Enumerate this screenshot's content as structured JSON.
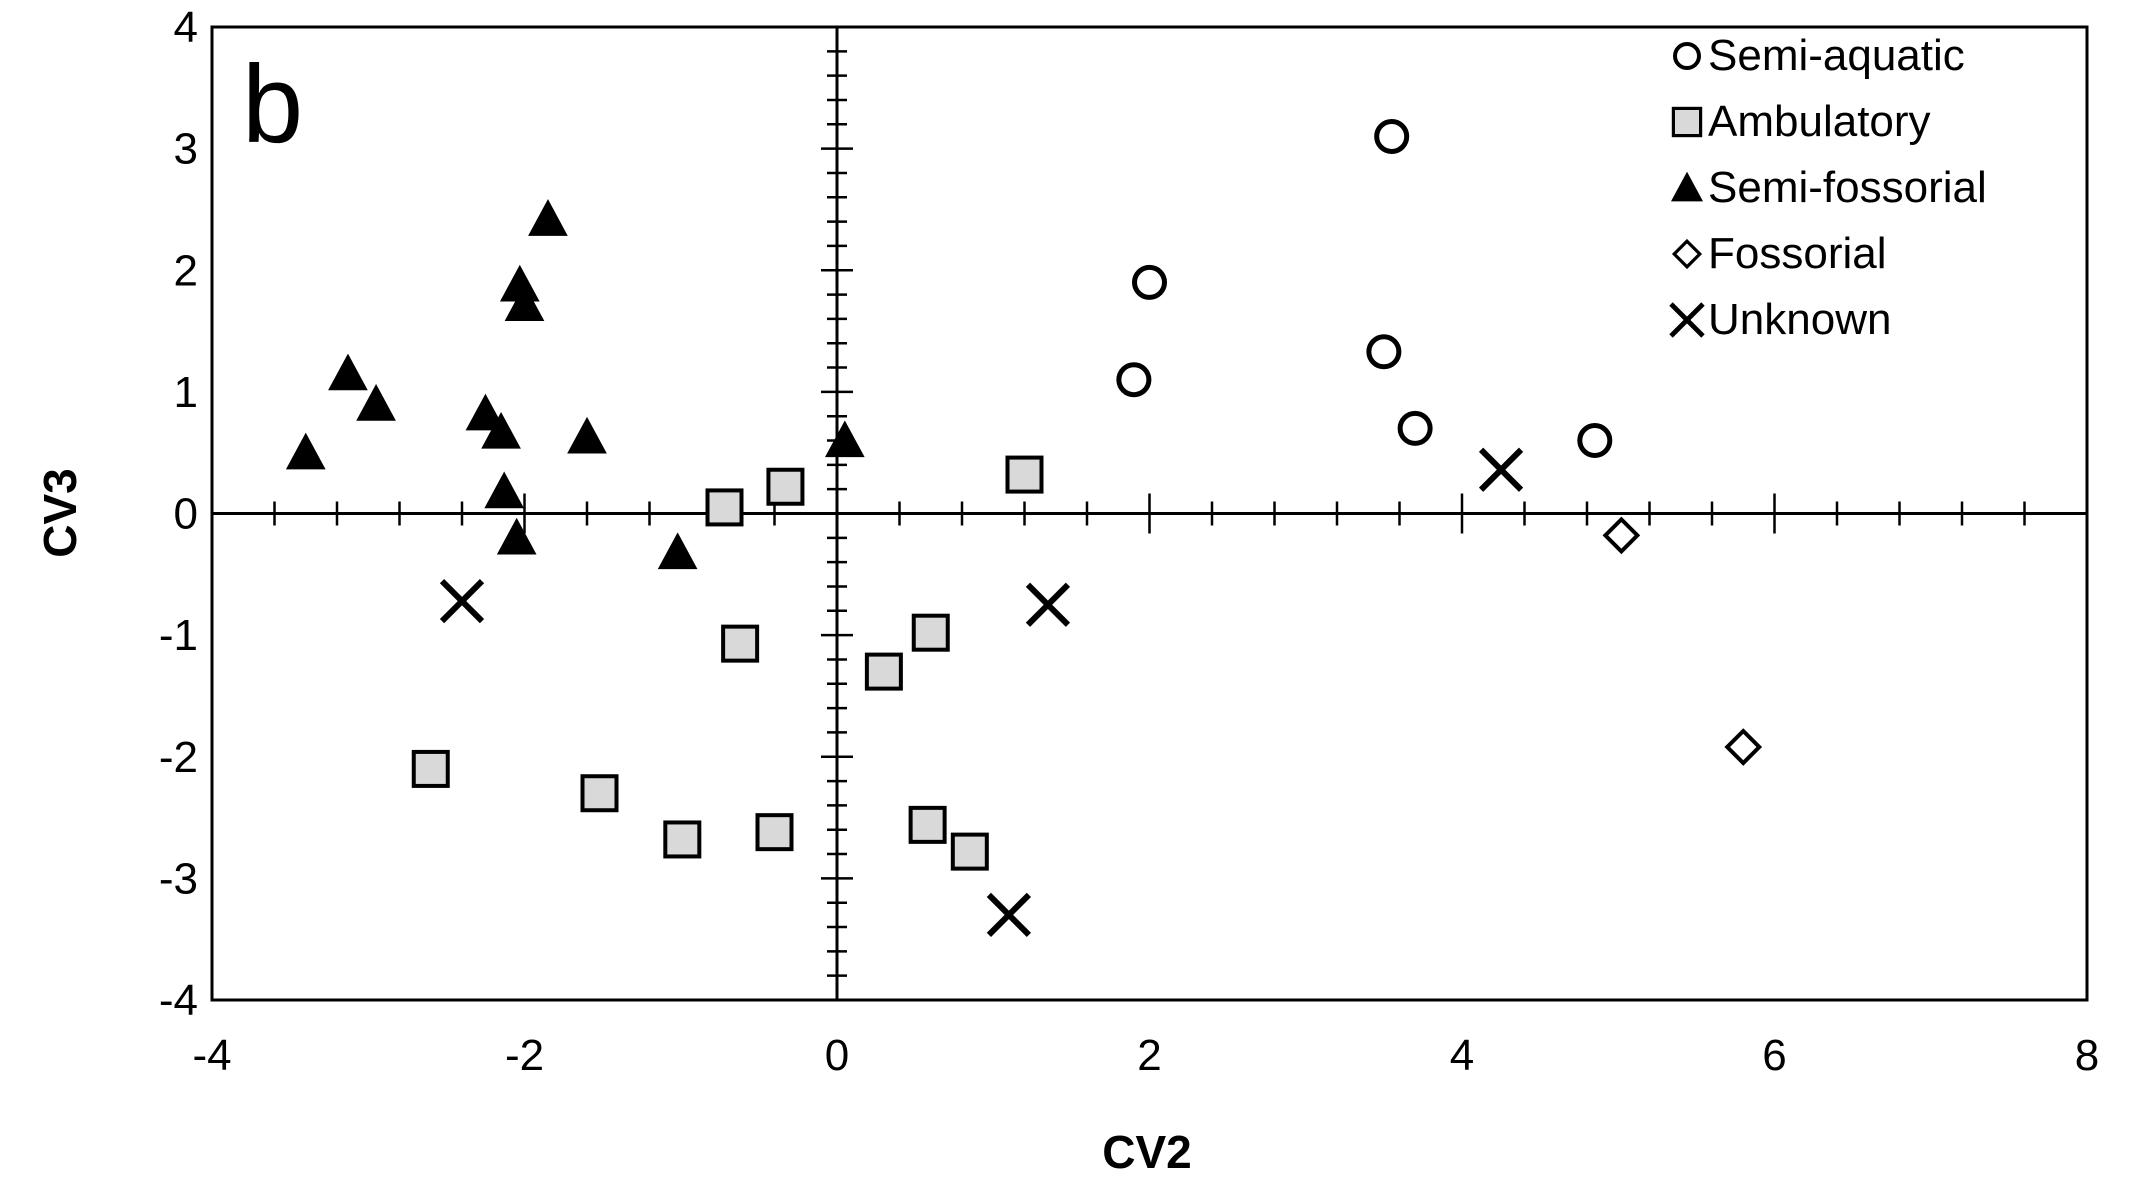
{
  "chart_data": {
    "type": "scatter",
    "panel_label": "b",
    "xlabel": "CV2",
    "ylabel": "CV3",
    "xlim": [
      -4,
      8
    ],
    "ylim": [
      -4,
      4
    ],
    "x_ticks": [
      -4,
      -2,
      0,
      2,
      4,
      6,
      8
    ],
    "y_ticks": [
      -4,
      -3,
      -2,
      -1,
      0,
      1,
      2,
      3,
      4
    ],
    "x_tick_labels": [
      "-4",
      "-2",
      "0",
      "2",
      "4",
      "6",
      "8"
    ],
    "y_tick_labels": [
      "-4",
      "-3",
      "-2",
      "-1",
      "0",
      "1",
      "2",
      "3",
      "4"
    ],
    "grid": false,
    "legend_position": "top-right",
    "series": [
      {
        "name": "Semi-aquatic",
        "marker": "circle",
        "points": [
          [
            3.55,
            3.1
          ],
          [
            2.0,
            1.9
          ],
          [
            1.9,
            1.1
          ],
          [
            3.5,
            1.33
          ],
          [
            3.7,
            0.7
          ],
          [
            4.85,
            0.6
          ]
        ]
      },
      {
        "name": "Ambulatory",
        "marker": "square",
        "points": [
          [
            -0.72,
            0.05
          ],
          [
            -0.33,
            0.22
          ],
          [
            1.2,
            0.32
          ],
          [
            -0.62,
            -1.07
          ],
          [
            0.3,
            -1.3
          ],
          [
            0.6,
            -0.98
          ],
          [
            -2.6,
            -2.1
          ],
          [
            -1.52,
            -2.3
          ],
          [
            -0.99,
            -2.68
          ],
          [
            -0.4,
            -2.62
          ],
          [
            0.58,
            -2.56
          ],
          [
            0.85,
            -2.78
          ]
        ]
      },
      {
        "name": "Semi-fossorial",
        "marker": "triangle",
        "points": [
          [
            -1.85,
            2.42
          ],
          [
            -2.03,
            1.88
          ],
          [
            -2.0,
            1.72
          ],
          [
            -3.13,
            1.15
          ],
          [
            -2.95,
            0.9
          ],
          [
            -2.25,
            0.82
          ],
          [
            -2.15,
            0.67
          ],
          [
            -1.6,
            0.63
          ],
          [
            -3.4,
            0.5
          ],
          [
            -2.13,
            0.18
          ],
          [
            -2.05,
            -0.2
          ],
          [
            -1.02,
            -0.32
          ],
          [
            0.05,
            0.6
          ]
        ]
      },
      {
        "name": "Fossorial",
        "marker": "diamond",
        "points": [
          [
            5.02,
            -0.18
          ],
          [
            5.8,
            -1.92
          ]
        ]
      },
      {
        "name": "Unknown",
        "marker": "cross",
        "points": [
          [
            -2.4,
            -0.72
          ],
          [
            1.35,
            -0.75
          ],
          [
            4.25,
            0.36
          ],
          [
            1.1,
            -3.3
          ]
        ]
      }
    ]
  }
}
